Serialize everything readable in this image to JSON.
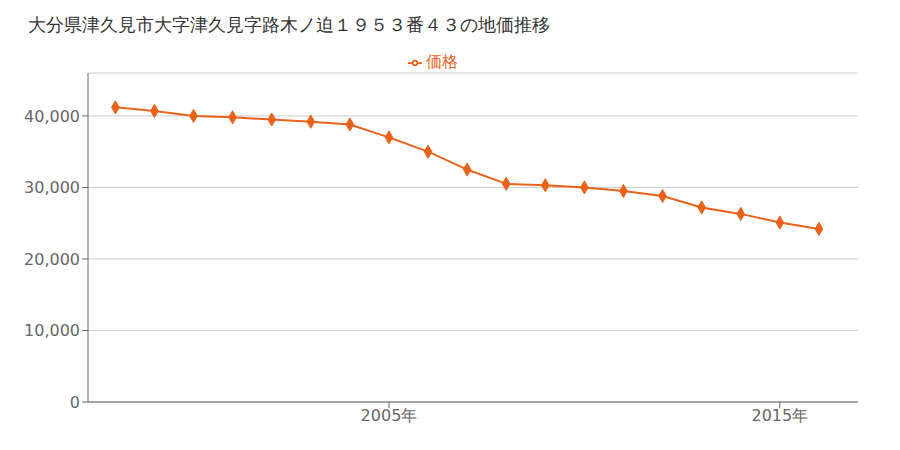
{
  "chart_data": {
    "type": "line",
    "title": "大分県津久見市大字津久見字路木ノ迫１９５３番４３の地価推移",
    "x": [
      1998,
      1999,
      2000,
      2001,
      2002,
      2003,
      2004,
      2005,
      2006,
      2007,
      2008,
      2009,
      2010,
      2011,
      2012,
      2013,
      2014,
      2015,
      2016
    ],
    "series": [
      {
        "name": "価格",
        "color": "#E8621A",
        "marker": "diamond",
        "values": [
          41200,
          40700,
          40000,
          39800,
          39500,
          39200,
          38800,
          37000,
          35000,
          32500,
          30500,
          30300,
          30000,
          29500,
          28800,
          27200,
          26300,
          25100,
          24200
        ]
      }
    ],
    "xlim": [
      1997.3,
      2017.0
    ],
    "xticks": [
      {
        "value": 2005,
        "label": "2005年"
      },
      {
        "value": 2015,
        "label": "2015年"
      }
    ],
    "ylim": [
      0,
      46000
    ],
    "yticks": [
      0,
      {
        "value": 10000,
        "label": "10,000"
      },
      {
        "value": 20000,
        "label": "20,000"
      },
      {
        "value": 30000,
        "label": "30,000"
      },
      {
        "value": 40000,
        "label": "40,000"
      }
    ],
    "grid": true,
    "legend": "top"
  }
}
